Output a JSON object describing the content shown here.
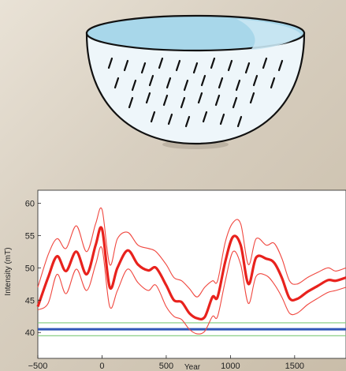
{
  "colors": {
    "mean_line": "#e8221d",
    "bound_line": "#f0473f",
    "blue_line": "#2f56b8",
    "green_line": "#7fc97a",
    "bowl_rim_fill": "#a8d7ea",
    "bowl_body_fill": "#eef6fa"
  },
  "illustration": {
    "icon": "bowl-icon"
  },
  "chart_data": {
    "type": "line",
    "xlabel": "Year",
    "ylabel": "Intensity (mT)",
    "xlim": [
      -500,
      1900
    ],
    "ylim": [
      36,
      62
    ],
    "xticks": [
      -500,
      0,
      500,
      1000,
      1500
    ],
    "yticks": [
      40,
      45,
      50,
      55,
      60
    ],
    "grid": false,
    "x": [
      -500,
      -420,
      -350,
      -280,
      -200,
      -120,
      -50,
      0,
      60,
      120,
      200,
      280,
      360,
      420,
      500,
      560,
      620,
      680,
      740,
      800,
      860,
      900,
      960,
      1020,
      1080,
      1140,
      1200,
      1280,
      1340,
      1400,
      1460,
      1520,
      1600,
      1680,
      1760,
      1820,
      1900
    ],
    "series": [
      {
        "role": "mean",
        "values": [
          44,
          48.5,
          51.8,
          49.5,
          52.5,
          49,
          53.5,
          56,
          47,
          50,
          52.7,
          50.5,
          49.6,
          50,
          47.3,
          45,
          44.7,
          43,
          42.2,
          42.4,
          45.5,
          45.5,
          51,
          54.8,
          53.5,
          47.5,
          51.6,
          51.4,
          50.8,
          48.5,
          45.3,
          45.2,
          46.3,
          47.2,
          48.1,
          48,
          48.5
        ]
      },
      {
        "role": "upper",
        "values": [
          47,
          52,
          54.5,
          53,
          56.5,
          52.5,
          56.8,
          59,
          50.5,
          54.5,
          55.5,
          53.5,
          53,
          52.5,
          50.5,
          48.5,
          48,
          46.8,
          45.5,
          47,
          48,
          48,
          54,
          57,
          56.8,
          50.5,
          54.5,
          53.5,
          53.8,
          51.5,
          48,
          47.5,
          48.5,
          49.3,
          50,
          49.5,
          50
        ]
      },
      {
        "role": "lower",
        "values": [
          43.5,
          44.5,
          49,
          46,
          49.8,
          46.5,
          50.5,
          53,
          44,
          46.5,
          49.8,
          47.7,
          46.5,
          47.3,
          44,
          42.5,
          42,
          40.5,
          39.8,
          40.2,
          42.5,
          42.5,
          48,
          52.5,
          50.5,
          44.5,
          48.7,
          48.8,
          47.5,
          45.5,
          43,
          43,
          44.3,
          45.3,
          46.2,
          46.5,
          47
        ]
      }
    ],
    "hlines": [
      {
        "role": "green-upper",
        "y": 41.5
      },
      {
        "role": "blue",
        "y": 40.5
      },
      {
        "role": "green-lower",
        "y": 39.5
      }
    ]
  }
}
